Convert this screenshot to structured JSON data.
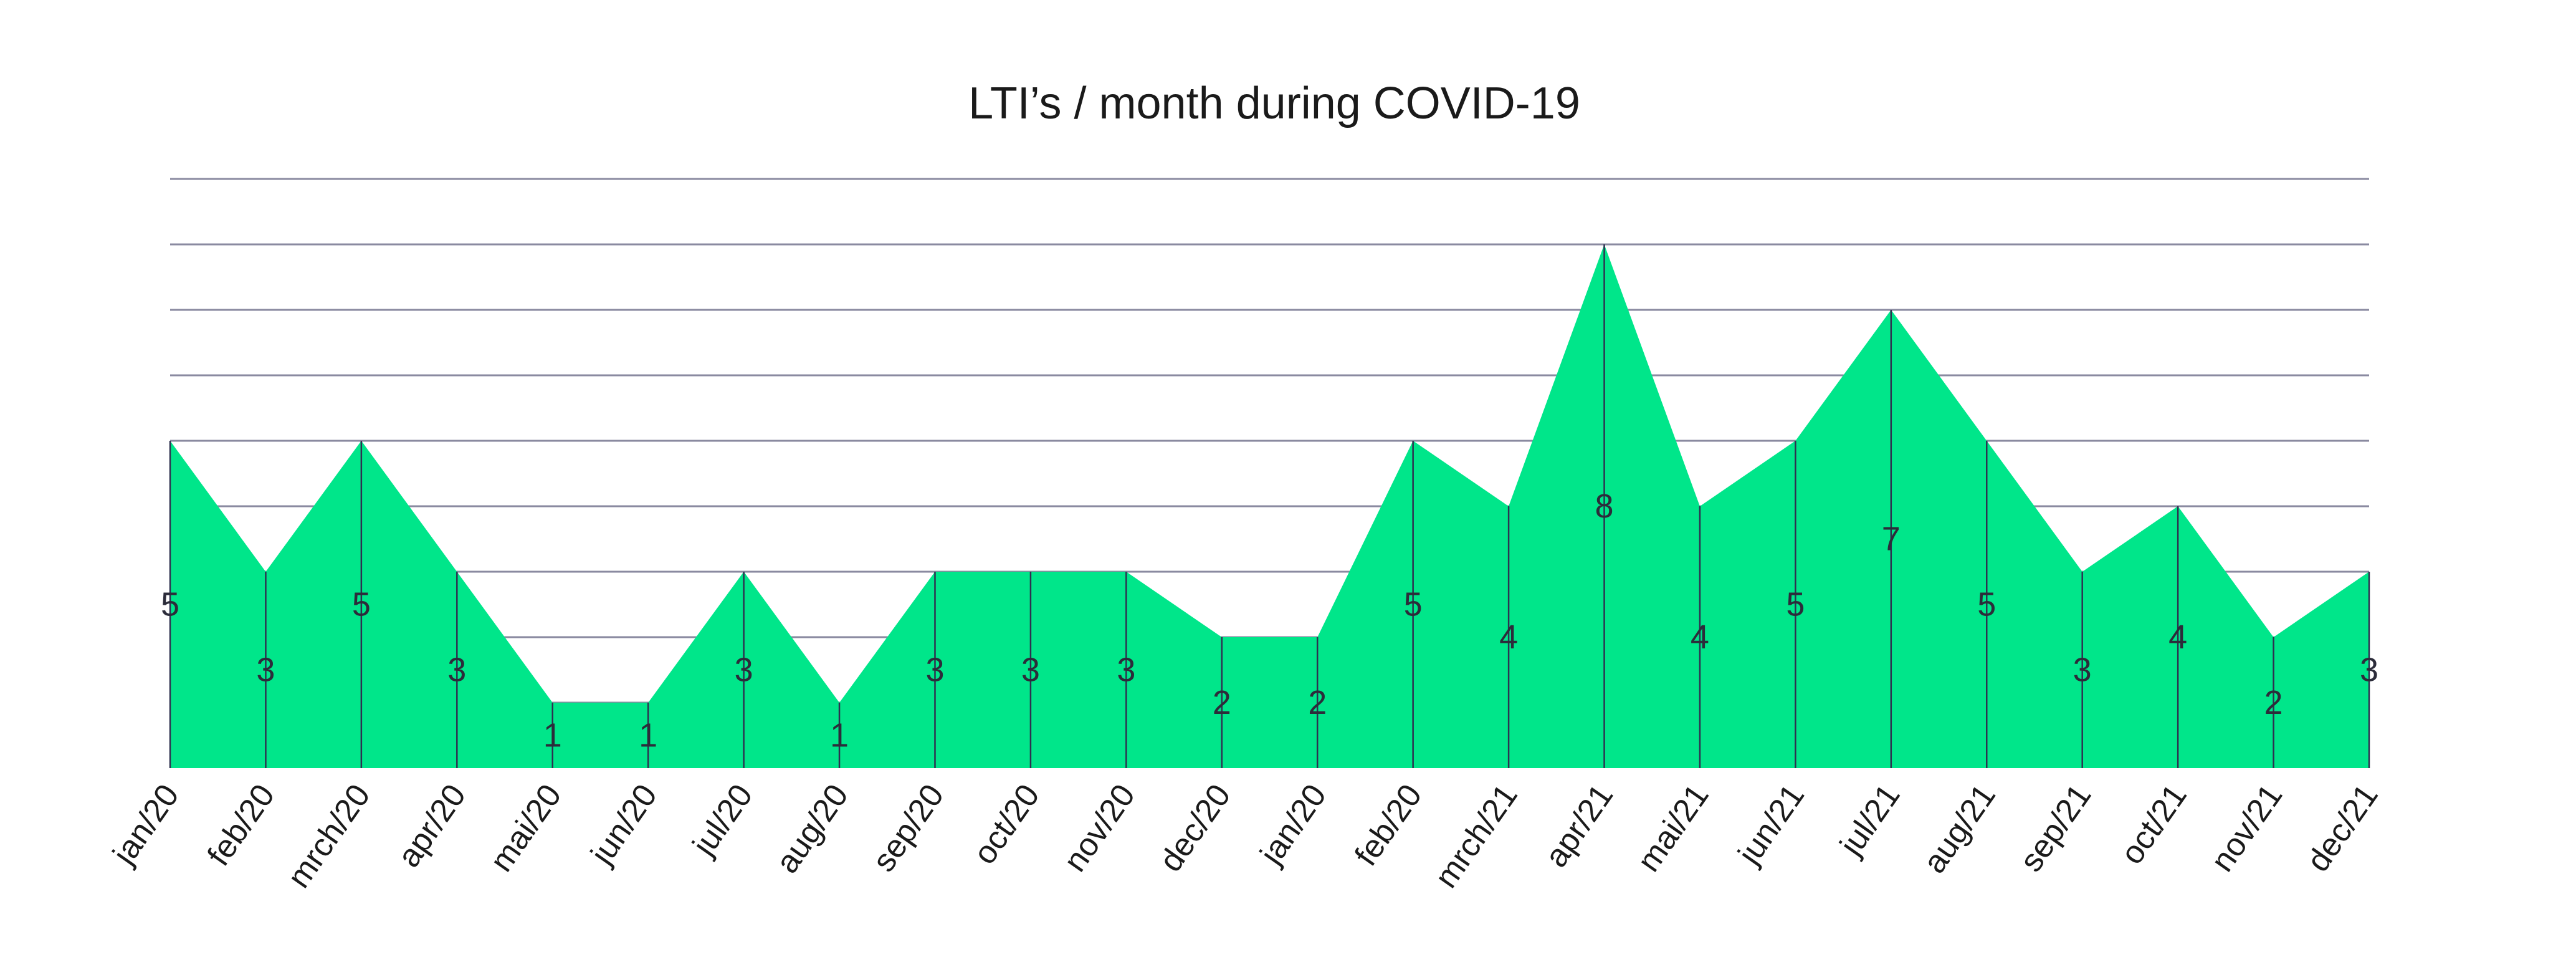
{
  "chart_data": {
    "type": "area",
    "title": "LTI’s / month during COVID-19",
    "xlabel": "",
    "ylabel": "",
    "ylim": [
      0,
      9
    ],
    "grid": true,
    "categories": [
      "jan/20",
      "feb/20",
      "mrch/20",
      "apr/20",
      "mai/20",
      "jun/20",
      "jul/20",
      "aug/20",
      "sep/20",
      "oct/20",
      "nov/20",
      "dec/20",
      "jan/20",
      "feb/20",
      "mrch/21",
      "apr/21",
      "mai/21",
      "jun/21",
      "jul/21",
      "aug/21",
      "sep/21",
      "oct/21",
      "nov/21",
      "dec/21"
    ],
    "values": [
      5,
      3,
      5,
      3,
      1,
      1,
      3,
      1,
      3,
      3,
      3,
      2,
      2,
      5,
      4,
      8,
      4,
      5,
      7,
      5,
      3,
      4,
      2,
      3
    ],
    "value_labels": [
      "5",
      "3",
      "5",
      "3",
      "1",
      "1",
      "3",
      "1",
      "3",
      "3",
      "3",
      "2",
      "2",
      "5",
      "4",
      "8",
      "4",
      "5",
      "7",
      "5",
      "3",
      "4",
      "2",
      "3"
    ],
    "colors": {
      "fill": "#00e68a",
      "grid": "#8a8aa0",
      "drop_lines": "#2e3150"
    }
  }
}
